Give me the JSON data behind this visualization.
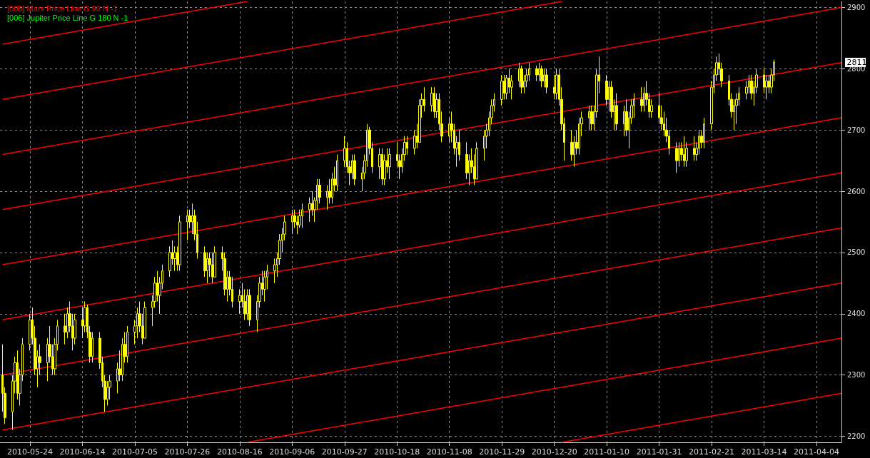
{
  "chart_data": {
    "type": "candlestick",
    "color": "#ffff00",
    "x": [
      "2010-05-13",
      "2010-05-14",
      "2010-05-17",
      "2010-05-18",
      "2010-05-19",
      "2010-05-20",
      "2010-05-21",
      "2010-05-24",
      "2010-05-25",
      "2010-05-26",
      "2010-05-27",
      "2010-05-28",
      "2010-05-31",
      "2010-06-01",
      "2010-06-02",
      "2010-06-03",
      "2010-06-04",
      "2010-06-07",
      "2010-06-08",
      "2010-06-09",
      "2010-06-10",
      "2010-06-11",
      "2010-06-14",
      "2010-06-15",
      "2010-06-16",
      "2010-06-17",
      "2010-06-18",
      "2010-06-21",
      "2010-06-22",
      "2010-06-23",
      "2010-06-24",
      "2010-06-25",
      "2010-06-28",
      "2010-06-29",
      "2010-06-30",
      "2010-07-01",
      "2010-07-02",
      "2010-07-05",
      "2010-07-06",
      "2010-07-07",
      "2010-07-08",
      "2010-07-09",
      "2010-07-12",
      "2010-07-13",
      "2010-07-14",
      "2010-07-15",
      "2010-07-16",
      "2010-07-19",
      "2010-07-20",
      "2010-07-21",
      "2010-07-22",
      "2010-07-23",
      "2010-07-26",
      "2010-07-27",
      "2010-07-28",
      "2010-07-29",
      "2010-07-30",
      "2010-08-02",
      "2010-08-03",
      "2010-08-04",
      "2010-08-05",
      "2010-08-06",
      "2010-08-09",
      "2010-08-10",
      "2010-08-11",
      "2010-08-12",
      "2010-08-13",
      "2010-08-16",
      "2010-08-17",
      "2010-08-18",
      "2010-08-19",
      "2010-08-20",
      "2010-08-23",
      "2010-08-24",
      "2010-08-25",
      "2010-08-26",
      "2010-08-27",
      "2010-08-30",
      "2010-08-31",
      "2010-09-01",
      "2010-09-02",
      "2010-09-03",
      "2010-09-06",
      "2010-09-07",
      "2010-09-08",
      "2010-09-09",
      "2010-09-10",
      "2010-09-13",
      "2010-09-14",
      "2010-09-15",
      "2010-09-16",
      "2010-09-17",
      "2010-09-20",
      "2010-09-21",
      "2010-09-22",
      "2010-09-23",
      "2010-09-24",
      "2010-09-27",
      "2010-09-28",
      "2010-09-29",
      "2010-09-30",
      "2010-10-01",
      "2010-10-04",
      "2010-10-05",
      "2010-10-06",
      "2010-10-07",
      "2010-10-08",
      "2010-10-11",
      "2010-10-12",
      "2010-10-13",
      "2010-10-14",
      "2010-10-15",
      "2010-10-18",
      "2010-10-19",
      "2010-10-20",
      "2010-10-21",
      "2010-10-22",
      "2010-10-25",
      "2010-10-26",
      "2010-10-27",
      "2010-10-28",
      "2010-10-29",
      "2010-11-01",
      "2010-11-02",
      "2010-11-03",
      "2010-11-04",
      "2010-11-05",
      "2010-11-08",
      "2010-11-09",
      "2010-11-10",
      "2010-11-11",
      "2010-11-12",
      "2010-11-15",
      "2010-11-16",
      "2010-11-17",
      "2010-11-18",
      "2010-11-19",
      "2010-11-22",
      "2010-11-23",
      "2010-11-24",
      "2010-11-25",
      "2010-11-26",
      "2010-11-29",
      "2010-11-30",
      "2010-12-01",
      "2010-12-02",
      "2010-12-03",
      "2010-12-06",
      "2010-12-07",
      "2010-12-08",
      "2010-12-09",
      "2010-12-10",
      "2010-12-13",
      "2010-12-14",
      "2010-12-15",
      "2010-12-16",
      "2010-12-17",
      "2010-12-20",
      "2010-12-21",
      "2010-12-22",
      "2010-12-23",
      "2010-12-24",
      "2010-12-27",
      "2010-12-28",
      "2010-12-29",
      "2010-12-30",
      "2010-12-31",
      "2011-01-03",
      "2011-01-04",
      "2011-01-05",
      "2011-01-06",
      "2011-01-07",
      "2011-01-10",
      "2011-01-11",
      "2011-01-12",
      "2011-01-13",
      "2011-01-14",
      "2011-01-17",
      "2011-01-18",
      "2011-01-19",
      "2011-01-20",
      "2011-01-21",
      "2011-01-24",
      "2011-01-25",
      "2011-01-26",
      "2011-01-27",
      "2011-01-28",
      "2011-01-31",
      "2011-02-01",
      "2011-02-02",
      "2011-02-03",
      "2011-02-04",
      "2011-02-07",
      "2011-02-08",
      "2011-02-09",
      "2011-02-10",
      "2011-02-11",
      "2011-02-14",
      "2011-02-15",
      "2011-02-16",
      "2011-02-17",
      "2011-02-18",
      "2011-02-21",
      "2011-02-22",
      "2011-02-23",
      "2011-02-24",
      "2011-02-25",
      "2011-02-28",
      "2011-03-01",
      "2011-03-02",
      "2011-03-03",
      "2011-03-04",
      "2011-03-07",
      "2011-03-08",
      "2011-03-09",
      "2011-03-10",
      "2011-03-11",
      "2011-03-14",
      "2011-03-15",
      "2011-03-16",
      "2011-03-17",
      "2011-03-18"
    ],
    "ohlc": [
      [
        2300,
        2350,
        2240,
        2270
      ],
      [
        2270,
        2280,
        2220,
        2230
      ],
      [
        2240,
        2300,
        2210,
        2290
      ],
      [
        2290,
        2330,
        2270,
        2320
      ],
      [
        2320,
        2340,
        2260,
        2270
      ],
      [
        2270,
        2310,
        2250,
        2300
      ],
      [
        2300,
        2360,
        2290,
        2350
      ],
      [
        2350,
        2400,
        2340,
        2390
      ],
      [
        2390,
        2410,
        2350,
        2360
      ],
      [
        2360,
        2380,
        2300,
        2310
      ],
      [
        2310,
        2340,
        2280,
        2330
      ],
      [
        2330,
        2350,
        2300,
        2320
      ],
      [
        2320,
        2360,
        2290,
        2350
      ],
      [
        2350,
        2380,
        2320,
        2330
      ],
      [
        2330,
        2350,
        2300,
        2310
      ],
      [
        2310,
        2360,
        2300,
        2350
      ],
      [
        2350,
        2390,
        2340,
        2380
      ],
      [
        2380,
        2400,
        2350,
        2370
      ],
      [
        2370,
        2410,
        2360,
        2400
      ],
      [
        2400,
        2420,
        2370,
        2380
      ],
      [
        2380,
        2400,
        2340,
        2360
      ],
      [
        2360,
        2400,
        2350,
        2390
      ],
      [
        2390,
        2410,
        2360,
        2380
      ],
      [
        2380,
        2420,
        2370,
        2410
      ],
      [
        2410,
        2415,
        2360,
        2370
      ],
      [
        2370,
        2380,
        2320,
        2330
      ],
      [
        2330,
        2370,
        2320,
        2360
      ],
      [
        2360,
        2370,
        2310,
        2320
      ],
      [
        2320,
        2330,
        2280,
        2290
      ],
      [
        2290,
        2300,
        2240,
        2260
      ],
      [
        2260,
        2290,
        2250,
        2280
      ],
      [
        2280,
        2300,
        2260,
        2290
      ],
      [
        2290,
        2320,
        2270,
        2310
      ],
      [
        2310,
        2340,
        2290,
        2300
      ],
      [
        2300,
        2360,
        2290,
        2350
      ],
      [
        2350,
        2370,
        2320,
        2330
      ],
      [
        2330,
        2380,
        2320,
        2370
      ],
      [
        2370,
        2390,
        2350,
        2380
      ],
      [
        2380,
        2410,
        2360,
        2400
      ],
      [
        2400,
        2420,
        2370,
        2380
      ],
      [
        2380,
        2400,
        2350,
        2360
      ],
      [
        2360,
        2420,
        2360,
        2410
      ],
      [
        2410,
        2430,
        2380,
        2420
      ],
      [
        2420,
        2460,
        2410,
        2450
      ],
      [
        2450,
        2470,
        2420,
        2430
      ],
      [
        2430,
        2460,
        2400,
        2450
      ],
      [
        2450,
        2480,
        2440,
        2470
      ],
      [
        2470,
        2510,
        2460,
        2500
      ],
      [
        2500,
        2520,
        2480,
        2490
      ],
      [
        2490,
        2510,
        2470,
        2500
      ],
      [
        2500,
        2510,
        2470,
        2480
      ],
      [
        2480,
        2560,
        2470,
        2550
      ],
      [
        2550,
        2570,
        2520,
        2560
      ],
      [
        2560,
        2570,
        2540,
        2550
      ],
      [
        2550,
        2580,
        2530,
        2560
      ],
      [
        2560,
        2570,
        2520,
        2530
      ],
      [
        2530,
        2550,
        2490,
        2500
      ],
      [
        2500,
        2510,
        2460,
        2470
      ],
      [
        2470,
        2500,
        2450,
        2490
      ],
      [
        2490,
        2500,
        2460,
        2480
      ],
      [
        2480,
        2500,
        2450,
        2460
      ],
      [
        2460,
        2510,
        2460,
        2500
      ],
      [
        2500,
        2510,
        2470,
        2490
      ],
      [
        2490,
        2500,
        2430,
        2440
      ],
      [
        2440,
        2470,
        2420,
        2460
      ],
      [
        2460,
        2470,
        2430,
        2440
      ],
      [
        2440,
        2460,
        2410,
        2420
      ],
      [
        2420,
        2440,
        2400,
        2430
      ],
      [
        2430,
        2450,
        2410,
        2420
      ],
      [
        2420,
        2440,
        2390,
        2400
      ],
      [
        2400,
        2440,
        2390,
        2430
      ],
      [
        2430,
        2440,
        2380,
        2390
      ],
      [
        2390,
        2430,
        2370,
        2420
      ],
      [
        2420,
        2460,
        2410,
        2450
      ],
      [
        2450,
        2470,
        2430,
        2440
      ],
      [
        2440,
        2470,
        2420,
        2460
      ],
      [
        2460,
        2480,
        2440,
        2470
      ],
      [
        2470,
        2490,
        2450,
        2480
      ],
      [
        2480,
        2500,
        2460,
        2490
      ],
      [
        2490,
        2530,
        2480,
        2520
      ],
      [
        2520,
        2540,
        2500,
        2530
      ],
      [
        2530,
        2560,
        2520,
        2550
      ],
      [
        2550,
        2570,
        2530,
        2560
      ],
      [
        2560,
        2570,
        2540,
        2550
      ],
      [
        2550,
        2560,
        2530,
        2545
      ],
      [
        2545,
        2570,
        2540,
        2560
      ],
      [
        2560,
        2580,
        2540,
        2570
      ],
      [
        2570,
        2590,
        2550,
        2580
      ],
      [
        2580,
        2600,
        2560,
        2570
      ],
      [
        2570,
        2590,
        2550,
        2585
      ],
      [
        2585,
        2620,
        2570,
        2610
      ],
      [
        2610,
        2620,
        2580,
        2590
      ],
      [
        2590,
        2610,
        2570,
        2600
      ],
      [
        2600,
        2620,
        2580,
        2590
      ],
      [
        2590,
        2630,
        2580,
        2620
      ],
      [
        2620,
        2640,
        2600,
        2610
      ],
      [
        2610,
        2660,
        2600,
        2650
      ],
      [
        2650,
        2690,
        2640,
        2670
      ],
      [
        2670,
        2680,
        2630,
        2640
      ],
      [
        2640,
        2650,
        2610,
        2630
      ],
      [
        2630,
        2660,
        2620,
        2650
      ],
      [
        2650,
        2660,
        2610,
        2620
      ],
      [
        2620,
        2640,
        2600,
        2630
      ],
      [
        2630,
        2660,
        2620,
        2650
      ],
      [
        2650,
        2710,
        2640,
        2700
      ],
      [
        2700,
        2705,
        2660,
        2670
      ],
      [
        2670,
        2680,
        2630,
        2640
      ],
      [
        2640,
        2670,
        2620,
        2660
      ],
      [
        2660,
        2670,
        2610,
        2620
      ],
      [
        2620,
        2660,
        2610,
        2650
      ],
      [
        2650,
        2670,
        2630,
        2640
      ],
      [
        2640,
        2670,
        2620,
        2660
      ],
      [
        2660,
        2680,
        2640,
        2650
      ],
      [
        2650,
        2660,
        2620,
        2640
      ],
      [
        2640,
        2670,
        2630,
        2660
      ],
      [
        2660,
        2690,
        2650,
        2680
      ],
      [
        2680,
        2690,
        2660,
        2670
      ],
      [
        2670,
        2700,
        2660,
        2690
      ],
      [
        2690,
        2710,
        2670,
        2680
      ],
      [
        2680,
        2750,
        2680,
        2740
      ],
      [
        2740,
        2760,
        2720,
        2750
      ],
      [
        2750,
        2770,
        2730,
        2740
      ],
      [
        2740,
        2770,
        2730,
        2760
      ],
      [
        2760,
        2770,
        2720,
        2730
      ],
      [
        2730,
        2760,
        2720,
        2750
      ],
      [
        2750,
        2760,
        2700,
        2710
      ],
      [
        2710,
        2730,
        2680,
        2690
      ],
      [
        2690,
        2720,
        2680,
        2710
      ],
      [
        2710,
        2730,
        2680,
        2700
      ],
      [
        2700,
        2710,
        2660,
        2670
      ],
      [
        2670,
        2690,
        2640,
        2680
      ],
      [
        2680,
        2700,
        2650,
        2660
      ],
      [
        2660,
        2680,
        2620,
        2630
      ],
      [
        2630,
        2660,
        2610,
        2650
      ],
      [
        2650,
        2670,
        2630,
        2640
      ],
      [
        2640,
        2660,
        2610,
        2620
      ],
      [
        2620,
        2680,
        2620,
        2670
      ],
      [
        2670,
        2700,
        2650,
        2690
      ],
      [
        2690,
        2710,
        2670,
        2700
      ],
      [
        2700,
        2730,
        2690,
        2720
      ],
      [
        2720,
        2750,
        2710,
        2740
      ],
      [
        2740,
        2760,
        2730,
        2750
      ],
      [
        2750,
        2790,
        2740,
        2780
      ],
      [
        2780,
        2790,
        2750,
        2760
      ],
      [
        2760,
        2790,
        2750,
        2785
      ],
      [
        2785,
        2800,
        2760,
        2770
      ],
      [
        2770,
        2790,
        2750,
        2780
      ],
      [
        2780,
        2810,
        2770,
        2800
      ],
      [
        2800,
        2805,
        2760,
        2770
      ],
      [
        2770,
        2790,
        2760,
        2780
      ],
      [
        2780,
        2800,
        2770,
        2790
      ],
      [
        2790,
        2810,
        2780,
        2800
      ],
      [
        2800,
        2805,
        2780,
        2790
      ],
      [
        2790,
        2810,
        2780,
        2800
      ],
      [
        2800,
        2805,
        2770,
        2780
      ],
      [
        2780,
        2800,
        2770,
        2790
      ],
      [
        2790,
        2800,
        2760,
        2770
      ],
      [
        2770,
        2790,
        2750,
        2760
      ],
      [
        2760,
        2800,
        2750,
        2790
      ],
      [
        2790,
        2800,
        2740,
        2750
      ],
      [
        2750,
        2770,
        2700,
        2710
      ],
      [
        2710,
        2720,
        2650,
        2680
      ],
      [
        2680,
        2700,
        2650,
        2660
      ],
      [
        2660,
        2690,
        2640,
        2680
      ],
      [
        2680,
        2700,
        2660,
        2670
      ],
      [
        2670,
        2720,
        2660,
        2710
      ],
      [
        2710,
        2730,
        2690,
        2720
      ],
      [
        2720,
        2740,
        2700,
        2730
      ],
      [
        2730,
        2740,
        2700,
        2710
      ],
      [
        2710,
        2740,
        2700,
        2730
      ],
      [
        2730,
        2800,
        2720,
        2790
      ],
      [
        2790,
        2820,
        2760,
        2780
      ],
      [
        2780,
        2790,
        2740,
        2750
      ],
      [
        2750,
        2780,
        2730,
        2770
      ],
      [
        2770,
        2780,
        2720,
        2730
      ],
      [
        2730,
        2750,
        2700,
        2740
      ],
      [
        2740,
        2760,
        2700,
        2710
      ],
      [
        2710,
        2740,
        2690,
        2730
      ],
      [
        2730,
        2750,
        2690,
        2700
      ],
      [
        2700,
        2730,
        2670,
        2720
      ],
      [
        2720,
        2750,
        2710,
        2740
      ],
      [
        2740,
        2760,
        2720,
        2750
      ],
      [
        2750,
        2770,
        2730,
        2740
      ],
      [
        2740,
        2770,
        2730,
        2760
      ],
      [
        2760,
        2780,
        2740,
        2750
      ],
      [
        2750,
        2760,
        2720,
        2730
      ],
      [
        2730,
        2750,
        2720,
        2740
      ],
      [
        2740,
        2760,
        2710,
        2720
      ],
      [
        2720,
        2740,
        2700,
        2710
      ],
      [
        2710,
        2730,
        2690,
        2700
      ],
      [
        2700,
        2720,
        2680,
        2690
      ],
      [
        2690,
        2700,
        2660,
        2670
      ],
      [
        2670,
        2680,
        2630,
        2650
      ],
      [
        2650,
        2680,
        2640,
        2670
      ],
      [
        2670,
        2680,
        2650,
        2660
      ],
      [
        2660,
        2690,
        2640,
        2650
      ],
      [
        2650,
        2680,
        2640,
        2670
      ],
      [
        2670,
        2690,
        2650,
        2660
      ],
      [
        2660,
        2680,
        2650,
        2670
      ],
      [
        2670,
        2700,
        2660,
        2690
      ],
      [
        2690,
        2700,
        2670,
        2680
      ],
      [
        2680,
        2720,
        2670,
        2710
      ],
      [
        2710,
        2780,
        2700,
        2770
      ],
      [
        2770,
        2800,
        2760,
        2790
      ],
      [
        2790,
        2820,
        2780,
        2810
      ],
      [
        2810,
        2825,
        2790,
        2800
      ],
      [
        2800,
        2810,
        2770,
        2780
      ],
      [
        2780,
        2790,
        2740,
        2750
      ],
      [
        2750,
        2760,
        2720,
        2730
      ],
      [
        2730,
        2750,
        2700,
        2740
      ],
      [
        2740,
        2760,
        2710,
        2750
      ],
      [
        2750,
        2770,
        2740,
        2760
      ],
      [
        2760,
        2780,
        2750,
        2770
      ],
      [
        2770,
        2790,
        2760,
        2780
      ],
      [
        2780,
        2790,
        2750,
        2760
      ],
      [
        2760,
        2780,
        2740,
        2770
      ],
      [
        2770,
        2800,
        2760,
        2790
      ],
      [
        2790,
        2800,
        2760,
        2770
      ],
      [
        2770,
        2790,
        2750,
        2780
      ],
      [
        2780,
        2790,
        2760,
        2770
      ],
      [
        2770,
        2800,
        2760,
        2790
      ],
      [
        2790,
        2815,
        2780,
        2811
      ]
    ],
    "series": [
      {
        "type": "line",
        "color": "#ff0000",
        "x": [
          "2010-12-23",
          "2011-04-14"
        ],
        "values": [
          2190,
          2270
        ]
      },
      {
        "type": "line",
        "color": "#ff0000",
        "x": [
          "2010-08-19",
          "2011-04-14"
        ],
        "values": [
          2190,
          2360
        ]
      },
      {
        "type": "line",
        "color": "#ff0000",
        "x": [
          "2010-05-13",
          "2011-04-14"
        ],
        "values": [
          2210,
          2450
        ]
      },
      {
        "type": "line",
        "color": "#ff0000",
        "x": [
          "2010-05-13",
          "2011-04-14"
        ],
        "values": [
          2300,
          2540
        ]
      },
      {
        "type": "line",
        "color": "#ff0000",
        "x": [
          "2010-05-13",
          "2011-04-14"
        ],
        "values": [
          2390,
          2630
        ]
      },
      {
        "type": "line",
        "color": "#ff0000",
        "x": [
          "2010-05-13",
          "2011-04-14"
        ],
        "values": [
          2480,
          2720
        ]
      },
      {
        "type": "line",
        "color": "#ff0000",
        "x": [
          "2010-05-13",
          "2011-04-14"
        ],
        "values": [
          2570,
          2810
        ]
      },
      {
        "type": "line",
        "color": "#ff0000",
        "x": [
          "2010-05-13",
          "2011-04-14"
        ],
        "values": [
          2660,
          2900
        ]
      },
      {
        "type": "line",
        "color": "#ff0000",
        "x": [
          "2010-05-13",
          "2010-12-23"
        ],
        "values": [
          2750,
          2910
        ]
      },
      {
        "type": "line",
        "color": "#ff0000",
        "x": [
          "2010-05-13",
          "2010-08-19"
        ],
        "values": [
          2840,
          2910
        ]
      }
    ],
    "xlim": [
      "2010-05-12",
      "2011-04-14"
    ],
    "xticks": [
      "2010-05-24",
      "2010-06-14",
      "2010-07-05",
      "2010-07-26",
      "2010-08-16",
      "2010-09-06",
      "2010-09-27",
      "2010-10-18",
      "2010-11-08",
      "2010-11-29",
      "2010-12-20",
      "2011-01-10",
      "2011-01-31",
      "2011-02-21",
      "2011-03-14",
      "2011-04-04"
    ],
    "ylim": [
      2190,
      2910
    ],
    "yticks": [
      2200,
      2300,
      2400,
      2500,
      2600,
      2700,
      2800,
      2900
    ],
    "grid": true,
    "annotations": [
      "[005] Mars Price Line G 90 N -1",
      "[006] Jupiter Price Line G 180 N -1",
      "2811"
    ]
  }
}
